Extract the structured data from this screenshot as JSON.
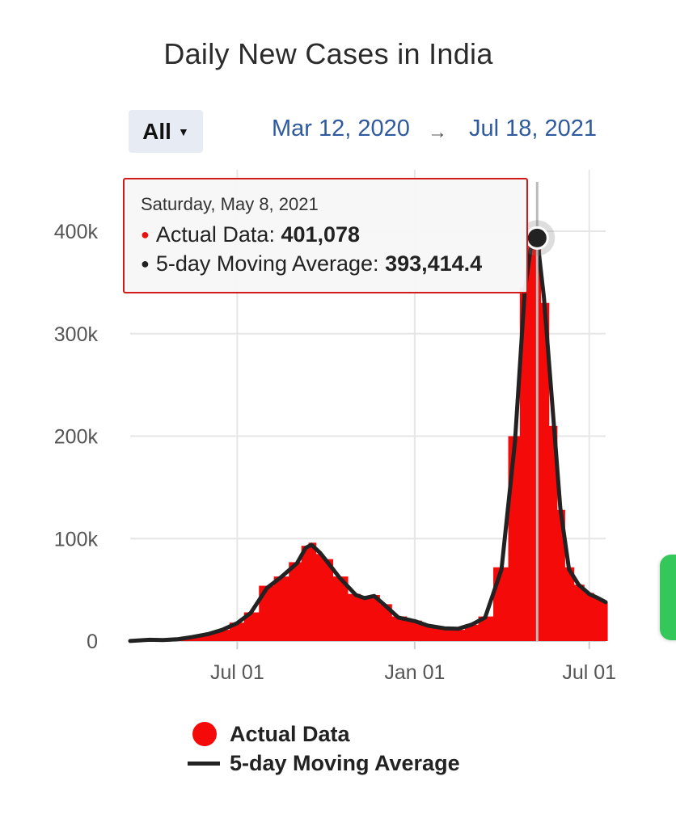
{
  "range_selector": {
    "label": "All"
  },
  "date_range": {
    "start": "Mar 12, 2020",
    "arrow": "→",
    "end": "Jul 18, 2021"
  },
  "tooltip": {
    "date": "Saturday, May 8, 2021",
    "actual_label": "Actual Data:",
    "actual_value": "401,078",
    "avg_label": "5-day Moving Average:",
    "avg_value": "393,414.4"
  },
  "colors": {
    "actual": "#f50a0a",
    "average": "#222222",
    "grid": "#e6e6e6",
    "link": "#2f5aa0",
    "side_tab": "#34c759"
  },
  "chart_data": {
    "type": "area",
    "title": "Daily New Cases in India",
    "xlabel": "",
    "ylabel": "",
    "x_range": [
      "2020-03-12",
      "2021-07-18"
    ],
    "ylim": [
      0,
      460000
    ],
    "y_ticks": [
      0,
      100000,
      200000,
      300000,
      400000
    ],
    "y_tick_labels": [
      "0",
      "100k",
      "200k",
      "300k",
      "400k"
    ],
    "x_ticks": [
      "2020-07-01",
      "2021-01-01",
      "2021-07-01"
    ],
    "x_tick_labels": [
      "Jul 01",
      "Jan 01",
      "Jul 01"
    ],
    "grid": true,
    "legend": "bottom",
    "series": [
      {
        "name": "Actual Data",
        "style": "bar",
        "x": [
          "2020-03-12",
          "2020-04-01",
          "2020-04-15",
          "2020-05-01",
          "2020-05-15",
          "2020-06-01",
          "2020-06-15",
          "2020-07-01",
          "2020-07-15",
          "2020-08-01",
          "2020-08-15",
          "2020-09-01",
          "2020-09-10",
          "2020-09-16",
          "2020-09-25",
          "2020-10-01",
          "2020-10-15",
          "2020-11-01",
          "2020-11-10",
          "2020-11-20",
          "2020-12-01",
          "2020-12-15",
          "2021-01-01",
          "2021-01-15",
          "2021-02-01",
          "2021-02-15",
          "2021-03-01",
          "2021-03-15",
          "2021-04-01",
          "2021-04-15",
          "2021-04-25",
          "2021-05-01",
          "2021-05-08",
          "2021-05-15",
          "2021-05-25",
          "2021-06-01",
          "2021-06-10",
          "2021-06-20",
          "2021-07-01",
          "2021-07-10",
          "2021-07-18"
        ],
        "values": [
          50,
          1500,
          1200,
          2000,
          4000,
          7000,
          11000,
          18000,
          28000,
          54000,
          63000,
          77000,
          93000,
          96000,
          85000,
          80000,
          63000,
          46000,
          44000,
          45000,
          36000,
          24000,
          20000,
          15000,
          12000,
          11000,
          16000,
          24000,
          72000,
          200000,
          345000,
          386000,
          401078,
          330000,
          210000,
          128000,
          72000,
          55000,
          47000,
          42000,
          38000
        ]
      },
      {
        "name": "5-day Moving Average",
        "style": "line",
        "x": [
          "2020-03-12",
          "2020-04-01",
          "2020-04-15",
          "2020-05-01",
          "2020-05-15",
          "2020-06-01",
          "2020-06-15",
          "2020-07-01",
          "2020-07-15",
          "2020-08-01",
          "2020-08-15",
          "2020-09-01",
          "2020-09-10",
          "2020-09-16",
          "2020-09-25",
          "2020-10-01",
          "2020-10-15",
          "2020-11-01",
          "2020-11-10",
          "2020-11-20",
          "2020-12-01",
          "2020-12-15",
          "2021-01-01",
          "2021-01-15",
          "2021-02-01",
          "2021-02-15",
          "2021-03-01",
          "2021-03-15",
          "2021-04-01",
          "2021-04-15",
          "2021-04-25",
          "2021-05-01",
          "2021-05-08",
          "2021-05-15",
          "2021-05-25",
          "2021-06-01",
          "2021-06-10",
          "2021-06-20",
          "2021-07-01",
          "2021-07-10",
          "2021-07-18"
        ],
        "values": [
          50,
          1300,
          1000,
          1900,
          3900,
          6900,
          10800,
          17500,
          27500,
          52000,
          62000,
          76000,
          91000,
          94000,
          86000,
          79000,
          62000,
          45000,
          42000,
          44000,
          35000,
          23000,
          19500,
          15000,
          12500,
          12000,
          16000,
          23000,
          70000,
          195000,
          340000,
          382000,
          393414.4,
          335000,
          215000,
          130000,
          70000,
          55000,
          46000,
          42000,
          38000
        ]
      }
    ]
  }
}
